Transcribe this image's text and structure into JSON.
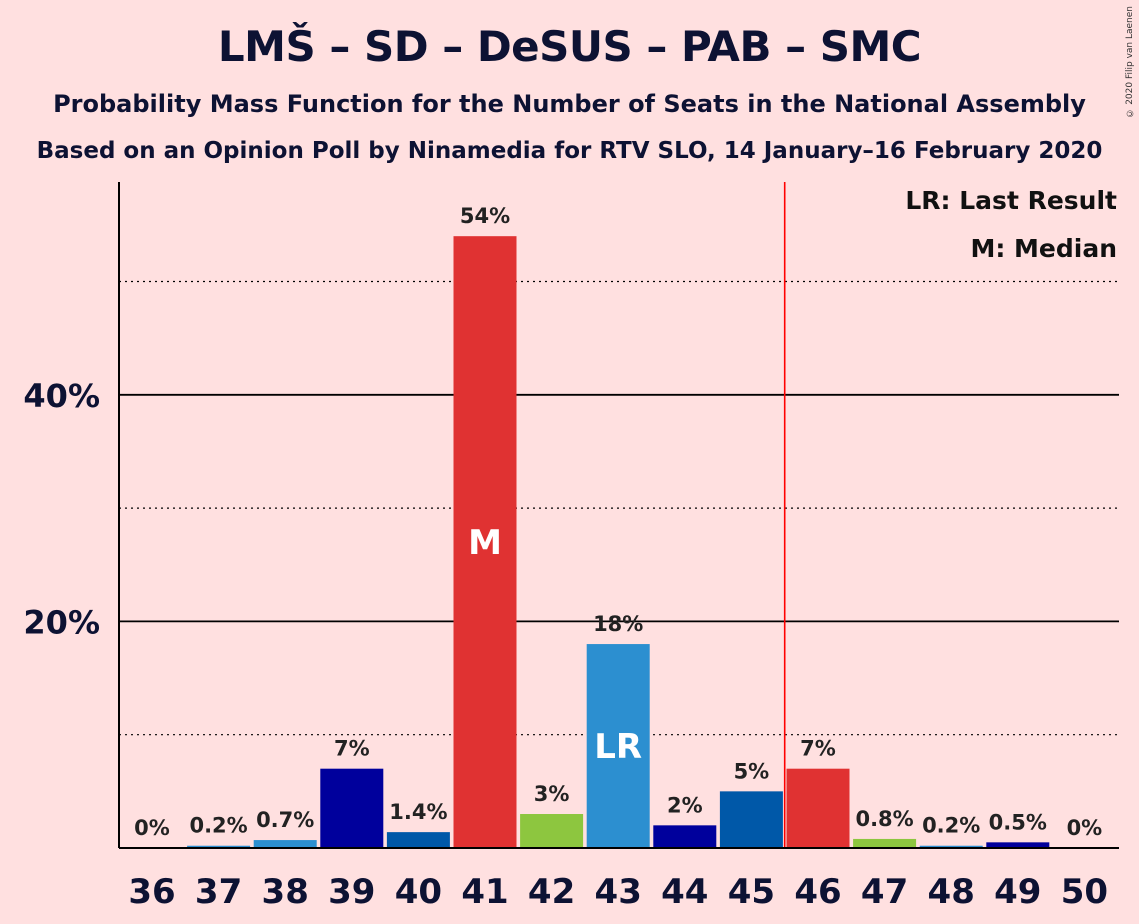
{
  "title": "LMŠ – SD – DeSUS – PAB – SMC",
  "subtitle": "Probability Mass Function for the Number of Seats in the National Assembly",
  "subtitle2": "Based on an Opinion Poll by Ninamedia for RTV SLO, 14 January–16 February 2020",
  "copyright": "© 2020 Filip van Laenen",
  "legend": {
    "lr": "LR: Last Result",
    "m": "M: Median"
  },
  "colors": {
    "background": "#FFE0E0",
    "red": "#E03232",
    "navy": "#00009C",
    "blue": "#2C8FD0",
    "steel": "#0058A8",
    "green": "#8DC63F",
    "last_result_line": "#FF0000"
  },
  "chart_data": {
    "type": "bar",
    "categories": [
      "36",
      "37",
      "38",
      "39",
      "40",
      "41",
      "42",
      "43",
      "44",
      "45",
      "46",
      "47",
      "48",
      "49",
      "50"
    ],
    "values": [
      0,
      0.2,
      0.7,
      7,
      1.4,
      54,
      3,
      18,
      2,
      5,
      7,
      0.8,
      0.2,
      0.5,
      0
    ],
    "value_labels": [
      "0%",
      "0.2%",
      "0.7%",
      "7%",
      "1.4%",
      "54%",
      "3%",
      "18%",
      "2%",
      "5%",
      "7%",
      "0.8%",
      "0.2%",
      "0.5%",
      "0%"
    ],
    "bar_colors": [
      "#2C8FD0",
      "#2C8FD0",
      "#2C8FD0",
      "#00009C",
      "#0058A8",
      "#E03232",
      "#8DC63F",
      "#2C8FD0",
      "#00009C",
      "#0058A8",
      "#E03232",
      "#8DC63F",
      "#2C8FD0",
      "#00009C",
      "#2C8FD0"
    ],
    "ylim": [
      0,
      58
    ],
    "yticks": [
      20,
      40
    ],
    "ytick_labels": [
      "20%",
      "40%"
    ],
    "dotted_gridlines": [
      10,
      30,
      50
    ],
    "median": {
      "category": "41",
      "label": "M"
    },
    "last_result": {
      "category": "43",
      "label": "LR"
    },
    "majority_line_between": [
      "45",
      "46"
    ],
    "legend_placement": "top-right"
  }
}
